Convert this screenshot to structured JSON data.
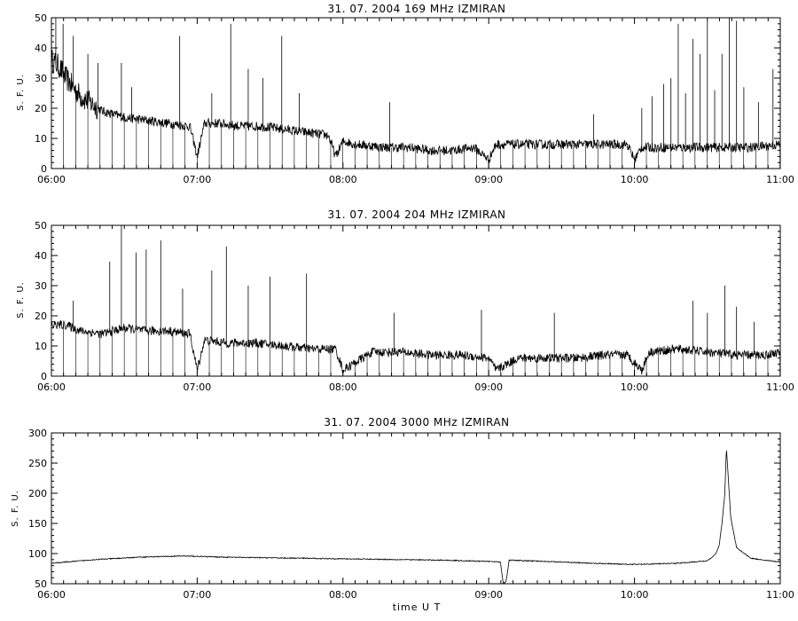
{
  "x_axis_label": "time  U T",
  "chart_data": [
    {
      "type": "line",
      "title": "31.  07.  2004    169 MHz    IZMIRAN",
      "ylabel": "S. F. U.",
      "xlabel": "",
      "x_range_hours": [
        6,
        11
      ],
      "xticks": [
        "06:00",
        "07:00",
        "08:00",
        "09:00",
        "10:00",
        "11:00"
      ],
      "ylim": [
        0,
        50
      ],
      "yticks": [
        0,
        10,
        20,
        30,
        40,
        50
      ],
      "color": "#000000",
      "series": [
        {
          "x": [
            6.0,
            6.05,
            6.1,
            6.2,
            6.35,
            6.5,
            6.65,
            6.8,
            6.95,
            7.0,
            7.05,
            7.15,
            7.3,
            7.45,
            7.6,
            7.75,
            7.9,
            7.95,
            8.0,
            8.1,
            8.3,
            8.45,
            8.6,
            8.75,
            8.9,
            9.0,
            9.05,
            9.2,
            9.4,
            9.6,
            9.8,
            9.95,
            10.0,
            10.05,
            10.2,
            10.4,
            10.6,
            10.8,
            11.0
          ],
          "y": [
            36,
            34,
            30,
            24,
            19,
            17,
            16,
            15,
            14,
            4,
            15,
            15,
            14,
            14,
            13,
            12,
            11,
            4,
            9,
            8,
            7,
            7,
            6,
            6,
            7,
            3,
            8,
            8,
            8,
            8,
            8,
            8,
            3,
            7,
            7,
            7,
            7,
            7,
            8
          ]
        }
      ],
      "spikes": [
        {
          "x": 6.03,
          "y": 50
        },
        {
          "x": 6.08,
          "y": 48
        },
        {
          "x": 6.15,
          "y": 44
        },
        {
          "x": 6.25,
          "y": 38
        },
        {
          "x": 6.32,
          "y": 35
        },
        {
          "x": 6.48,
          "y": 35
        },
        {
          "x": 6.55,
          "y": 27
        },
        {
          "x": 6.88,
          "y": 44
        },
        {
          "x": 7.1,
          "y": 25
        },
        {
          "x": 7.23,
          "y": 48
        },
        {
          "x": 7.35,
          "y": 33
        },
        {
          "x": 7.45,
          "y": 30
        },
        {
          "x": 7.58,
          "y": 44
        },
        {
          "x": 7.7,
          "y": 25
        },
        {
          "x": 8.32,
          "y": 22
        },
        {
          "x": 9.72,
          "y": 18
        },
        {
          "x": 10.05,
          "y": 20
        },
        {
          "x": 10.12,
          "y": 24
        },
        {
          "x": 10.2,
          "y": 28
        },
        {
          "x": 10.25,
          "y": 30
        },
        {
          "x": 10.3,
          "y": 48
        },
        {
          "x": 10.35,
          "y": 25
        },
        {
          "x": 10.4,
          "y": 43
        },
        {
          "x": 10.45,
          "y": 38
        },
        {
          "x": 10.5,
          "y": 49
        },
        {
          "x": 10.55,
          "y": 26
        },
        {
          "x": 10.6,
          "y": 38
        },
        {
          "x": 10.65,
          "y": 50
        },
        {
          "x": 10.7,
          "y": 49
        },
        {
          "x": 10.75,
          "y": 27
        },
        {
          "x": 10.85,
          "y": 22
        },
        {
          "x": 10.95,
          "y": 33
        }
      ],
      "noise": 1.6
    },
    {
      "type": "line",
      "title": "31.  07.  2004    204 MHz    IZMIRAN",
      "ylabel": "S. F. U.",
      "xlabel": "",
      "x_range_hours": [
        6,
        11
      ],
      "xticks": [
        "06:00",
        "07:00",
        "08:00",
        "09:00",
        "10:00",
        "11:00"
      ],
      "ylim": [
        0,
        50
      ],
      "yticks": [
        0,
        10,
        20,
        30,
        40,
        50
      ],
      "color": "#000000",
      "series": [
        {
          "x": [
            6.0,
            6.1,
            6.2,
            6.35,
            6.5,
            6.65,
            6.8,
            6.95,
            7.0,
            7.05,
            7.2,
            7.4,
            7.6,
            7.8,
            7.95,
            8.0,
            8.2,
            8.4,
            8.6,
            8.8,
            9.0,
            9.05,
            9.2,
            9.4,
            9.6,
            9.8,
            9.95,
            10.05,
            10.1,
            10.3,
            10.5,
            10.7,
            10.9,
            11.0
          ],
          "y": [
            17,
            17,
            15,
            14,
            16,
            15,
            15,
            14,
            2,
            12,
            11,
            11,
            10,
            9,
            9,
            2,
            8,
            8,
            7,
            7,
            6,
            2,
            6,
            6,
            6,
            7,
            7,
            2,
            8,
            9,
            8,
            7,
            7,
            8
          ]
        }
      ],
      "spikes": [
        {
          "x": 6.15,
          "y": 25
        },
        {
          "x": 6.4,
          "y": 38
        },
        {
          "x": 6.48,
          "y": 50
        },
        {
          "x": 6.58,
          "y": 41
        },
        {
          "x": 6.65,
          "y": 42
        },
        {
          "x": 6.75,
          "y": 45
        },
        {
          "x": 6.9,
          "y": 29
        },
        {
          "x": 7.1,
          "y": 35
        },
        {
          "x": 7.2,
          "y": 43
        },
        {
          "x": 7.35,
          "y": 30
        },
        {
          "x": 7.5,
          "y": 33
        },
        {
          "x": 7.75,
          "y": 34
        },
        {
          "x": 8.35,
          "y": 21
        },
        {
          "x": 8.95,
          "y": 22
        },
        {
          "x": 9.45,
          "y": 21
        },
        {
          "x": 10.4,
          "y": 25
        },
        {
          "x": 10.5,
          "y": 21
        },
        {
          "x": 10.62,
          "y": 30
        },
        {
          "x": 10.7,
          "y": 23
        },
        {
          "x": 10.82,
          "y": 18
        }
      ],
      "noise": 1.5
    },
    {
      "type": "line",
      "title": "31.  07.  2004    3000 MHz    IZMIRAN",
      "ylabel": "S. F. U.",
      "xlabel": "time  U T",
      "x_range_hours": [
        6,
        11
      ],
      "xticks": [
        "06:00",
        "07:00",
        "08:00",
        "09:00",
        "10:00",
        "11:00"
      ],
      "ylim": [
        50,
        300
      ],
      "yticks": [
        50,
        100,
        150,
        200,
        250,
        300
      ],
      "color": "#000000",
      "series": [
        {
          "x": [
            6.0,
            6.3,
            6.6,
            6.9,
            7.2,
            7.5,
            7.8,
            8.1,
            8.4,
            8.7,
            9.0,
            9.08,
            9.1,
            9.12,
            9.14,
            9.4,
            9.7,
            10.0,
            10.3,
            10.5,
            10.55,
            10.58,
            10.6,
            10.62,
            10.63,
            10.64,
            10.66,
            10.7,
            10.8,
            11.0
          ],
          "y": [
            84,
            90,
            94,
            96,
            94,
            93,
            92,
            91,
            90,
            89,
            87,
            86,
            50,
            55,
            89,
            87,
            84,
            82,
            84,
            88,
            97,
            112,
            150,
            200,
            275,
            240,
            160,
            110,
            92,
            86
          ]
        }
      ],
      "spikes": [],
      "noise": 0.8
    }
  ]
}
